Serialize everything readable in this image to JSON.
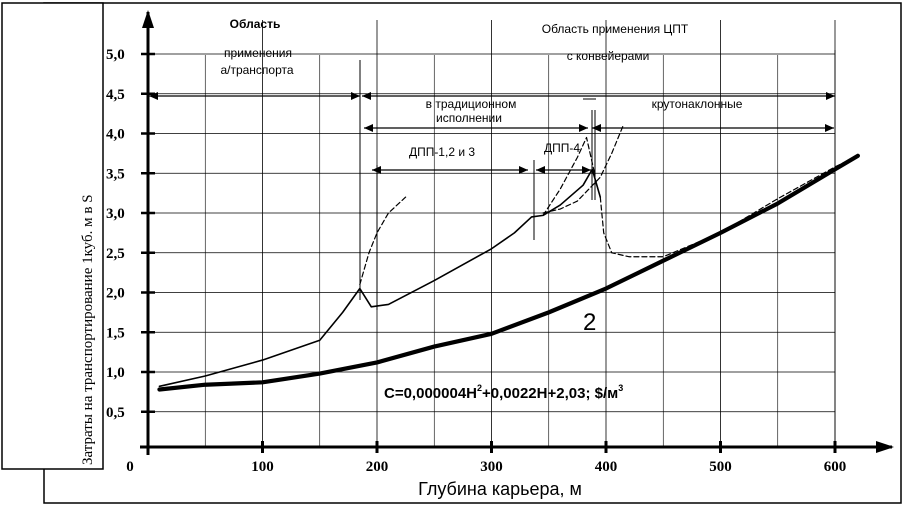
{
  "chart_data": {
    "type": "line",
    "xlabel": "Глубина карьера, м",
    "ylabel": "Затраты на транспортирование 1куб. м в  S",
    "xlim": [
      0,
      620
    ],
    "ylim": [
      0.5,
      5.3
    ],
    "x_ticks": [
      "0",
      "100",
      "200",
      "300",
      "400",
      "500",
      "600"
    ],
    "x_tick_values": [
      0,
      100,
      200,
      300,
      400,
      500,
      600
    ],
    "y_ticks": [
      "0,5",
      "1,0",
      "1,5",
      "2,0",
      "2,5",
      "3,0",
      "3,5",
      "4,0",
      "4,5",
      "5,0"
    ],
    "y_tick_values": [
      0.5,
      1.0,
      1.5,
      2.0,
      2.5,
      3.0,
      3.5,
      4.0,
      4.5,
      5.0
    ],
    "grid": true,
    "formula": {
      "main": "C=0,000004H",
      "exp": "2",
      "rest": "+0,0022H+2,03; $/м",
      "exp2": "3"
    },
    "curve_label": "2",
    "annotations": {
      "region_truck_1": "Область",
      "region_truck_2": "применения",
      "region_truck_3": "а/транспорта",
      "region_cpt": "Область применения ЦПТ",
      "with_conveyors": "с конвейерами",
      "traditional_1": "в традиционном",
      "traditional_2": "исполнении",
      "steep": "крутонаклонные",
      "dpp123": "ДПП-1,2 и 3",
      "dpp4": "ДПП-4"
    },
    "series": [
      {
        "style": "thick",
        "x": [
          10,
          50,
          100,
          150,
          200,
          250,
          300,
          350,
          400,
          450,
          500,
          550,
          600,
          620
        ],
        "y": [
          0.78,
          0.84,
          0.87,
          0.98,
          1.12,
          1.32,
          1.48,
          1.75,
          2.05,
          2.4,
          2.75,
          3.12,
          3.55,
          3.72
        ]
      },
      {
        "style": "thin",
        "x": [
          10,
          50,
          100,
          150,
          170,
          185,
          195,
          210,
          250,
          300,
          320,
          335,
          345,
          360,
          380,
          388,
          395
        ],
        "y": [
          0.82,
          0.95,
          1.15,
          1.4,
          1.75,
          2.05,
          1.82,
          1.85,
          2.15,
          2.55,
          2.75,
          2.95,
          2.97,
          3.1,
          3.35,
          3.55,
          3.2
        ]
      },
      {
        "style": "dashed",
        "x": [
          185,
          193,
          200,
          210,
          225
        ],
        "y": [
          2.1,
          2.5,
          2.75,
          3.0,
          3.2
        ]
      },
      {
        "style": "dashed",
        "x": [
          345,
          360,
          375,
          383,
          390
        ],
        "y": [
          2.97,
          3.3,
          3.7,
          3.95,
          3.5
        ]
      },
      {
        "style": "dashed",
        "x": [
          395,
          398,
          405,
          420,
          450,
          500,
          550,
          600,
          620
        ],
        "y": [
          3.2,
          2.75,
          2.5,
          2.45,
          2.45,
          2.75,
          3.18,
          3.58,
          3.72
        ]
      },
      {
        "style": "dashed",
        "x": [
          345,
          360,
          375,
          385,
          395,
          405,
          415
        ],
        "y": [
          3.0,
          3.05,
          3.15,
          3.3,
          3.45,
          3.75,
          4.1
        ]
      }
    ]
  }
}
